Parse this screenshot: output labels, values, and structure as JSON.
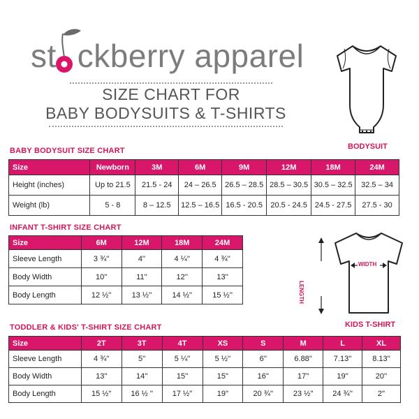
{
  "brand": {
    "name_before": "st",
    "name_after": "ckberry apparel",
    "title_line1": "SIZE CHART FOR",
    "title_line2": "BABY BODYSUITS & T-SHIRTS"
  },
  "colors": {
    "accent": "#d9176a",
    "logo_gray": "#7c7c7c",
    "stem": "#6a6a6a"
  },
  "illustrations": {
    "bodysuit_label": "BODYSUIT",
    "tshirt_label": "KIDS T-SHIRT",
    "width_label": "WIDTH",
    "length_label": "LENGTH"
  },
  "bodysuit_table": {
    "title": "BABY BODYSUIT SIZE CHART",
    "headers": [
      "Size",
      "Newborn",
      "3M",
      "6M",
      "9M",
      "12M",
      "18M",
      "24M"
    ],
    "rows": [
      [
        "Height (inches)",
        "Up to 21.5",
        "21.5 - 24",
        "24 – 26.5",
        "26.5 – 28.5",
        "28.5 – 30.5",
        "30.5 – 32.5",
        "32.5 – 34"
      ],
      [
        "Weight (lb)",
        "5 - 8",
        "8 – 12.5",
        "12.5 – 16.5",
        "16.5 - 20.5",
        "20.5 - 24.5",
        "24.5 - 27.5",
        "27.5 - 30"
      ]
    ]
  },
  "infant_table": {
    "title": "INFANT T-SHIRT SIZE CHART",
    "headers": [
      "Size",
      "6M",
      "12M",
      "18M",
      "24M"
    ],
    "rows": [
      [
        "Sleeve Length",
        "3 ¾''",
        "4''",
        "4 ¼''",
        "4 ¾''"
      ],
      [
        "Body Width",
        "10''",
        "11''",
        "12''",
        "13''"
      ],
      [
        "Body Length",
        "12 ½''",
        "13 ½''",
        "14 ½''",
        "15 ½''"
      ]
    ]
  },
  "toddler_table": {
    "title": "TODDLER & KIDS' T-SHIRT SIZE CHART",
    "headers": [
      "Size",
      "2T",
      "3T",
      "4T",
      "XS",
      "S",
      "M",
      "L",
      "XL"
    ],
    "rows": [
      [
        "Sleeve Length",
        "4 ¾''",
        "5''",
        "5 ¼''",
        "5 ½''",
        "6''",
        "6.88''",
        "7.13''",
        "8.13''"
      ],
      [
        "Body Width",
        "13''",
        "14''",
        "15''",
        "15''",
        "16''",
        "17''",
        "19''",
        "20''"
      ],
      [
        "Body Length",
        "15 ½''",
        "16 ½ ''",
        "17 ½''",
        "19''",
        "20 ¾''",
        "23 ½''",
        "24 ¾''",
        "2''"
      ]
    ]
  }
}
